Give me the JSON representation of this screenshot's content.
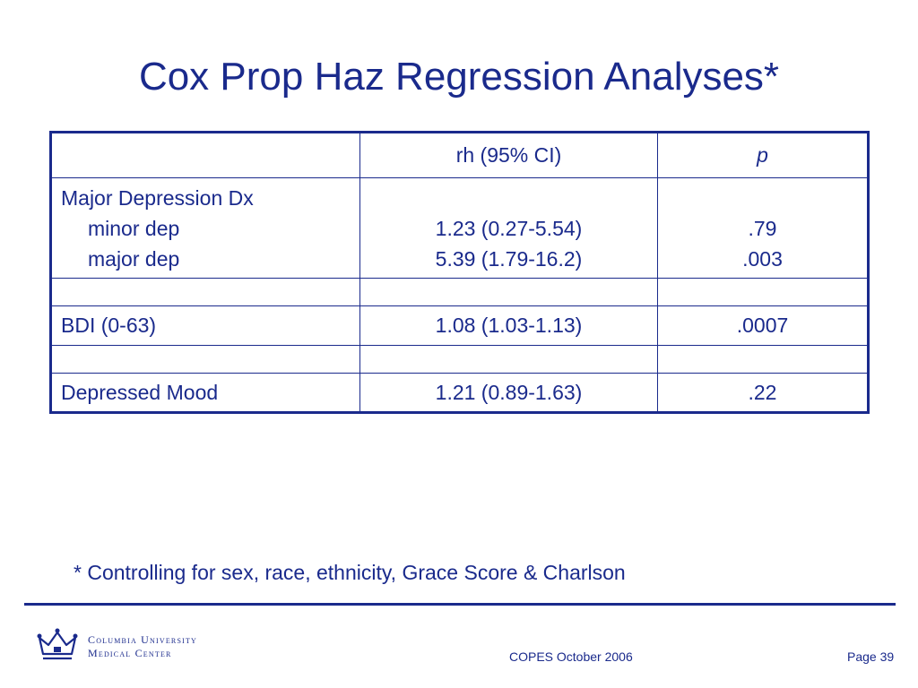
{
  "slide": {
    "title": "Cox Prop Haz Regression Analyses*"
  },
  "table": {
    "header": {
      "col1": "",
      "col2": "rh (95% CI)",
      "col3": "p"
    },
    "major_depression": {
      "label": "Major Depression Dx",
      "minor_label": "minor dep",
      "major_label": "major dep",
      "minor_rh": "1.23 (0.27-5.54)",
      "major_rh": "5.39 (1.79-16.2)",
      "minor_p": ".79",
      "major_p": ".003"
    },
    "bdi": {
      "label": "BDI (0-63)",
      "rh": "1.08 (1.03-1.13)",
      "p": ".0007"
    },
    "depressed_mood": {
      "label": "Depressed Mood",
      "rh": "1.21 (0.89-1.63)",
      "p": ".22"
    }
  },
  "footnote": "* Controlling for sex, race, ethnicity, Grace Score & Charlson",
  "footer": {
    "org_line1": "Columbia University",
    "org_line2": "Medical Center",
    "center_text": "COPES October 2006",
    "page_label": "Page 39"
  },
  "colors": {
    "primary": "#1a2a8c"
  },
  "icons": {
    "logo": "crown-icon"
  }
}
